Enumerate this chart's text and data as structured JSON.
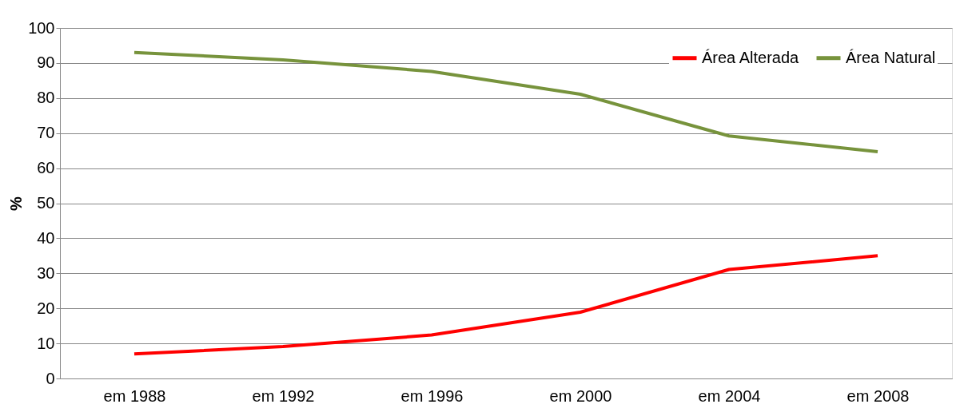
{
  "chart_data": {
    "type": "line",
    "ylabel": "%",
    "categories": [
      "em 1988",
      "em 1992",
      "em 1996",
      "em 2000",
      "em 2004",
      "em 2008"
    ],
    "series": [
      {
        "name": "Área Alterada",
        "color": "#ff0000",
        "values": [
          7.0,
          9.1,
          12.4,
          18.9,
          31.1,
          35.0
        ]
      },
      {
        "name": "Área Natural",
        "color": "#77933c",
        "values": [
          93.0,
          90.9,
          87.6,
          81.1,
          69.2,
          64.7
        ]
      }
    ],
    "ylim": [
      0,
      100
    ],
    "yticks": [
      0,
      10,
      20,
      30,
      40,
      50,
      60,
      70,
      80,
      90,
      100
    ],
    "grid": "y",
    "legend": "top right",
    "marker": "none",
    "line_style": "solid"
  }
}
